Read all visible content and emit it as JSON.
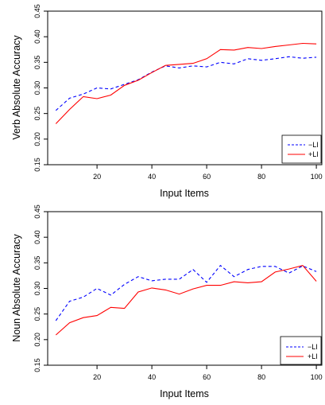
{
  "chart_data": [
    {
      "type": "line",
      "xlabel": "Input Items",
      "ylabel": "Verb Absolute Accuracy",
      "xlim": [
        2,
        102
      ],
      "ylim": [
        0.15,
        0.45
      ],
      "xticks": [
        20,
        40,
        60,
        80,
        100
      ],
      "yticks": [
        0.15,
        0.2,
        0.25,
        0.3,
        0.35,
        0.4,
        0.45
      ],
      "ytick_labels": [
        "0.15",
        "0.20",
        "0.25",
        "0.30",
        "0.35",
        "0.40",
        "0.45"
      ],
      "grid": false,
      "legend_position": "bottom-right",
      "x": [
        5,
        10,
        15,
        20,
        25,
        30,
        35,
        40,
        45,
        50,
        55,
        60,
        65,
        70,
        75,
        80,
        85,
        90,
        95,
        100
      ],
      "series": [
        {
          "name": "−LI",
          "color": "#0000ff",
          "dash": "dashed",
          "values": [
            0.256,
            0.28,
            0.288,
            0.3,
            0.298,
            0.307,
            0.316,
            0.331,
            0.343,
            0.339,
            0.343,
            0.341,
            0.35,
            0.347,
            0.357,
            0.354,
            0.357,
            0.361,
            0.358,
            0.36
          ]
        },
        {
          "name": "+LI",
          "color": "#ff0000",
          "dash": "solid",
          "values": [
            0.23,
            0.258,
            0.283,
            0.279,
            0.286,
            0.305,
            0.315,
            0.33,
            0.344,
            0.346,
            0.348,
            0.357,
            0.375,
            0.374,
            0.379,
            0.377,
            0.381,
            0.384,
            0.387,
            0.386
          ]
        }
      ]
    },
    {
      "type": "line",
      "xlabel": "Input Items",
      "ylabel": "Noun Absolute Accuracy",
      "xlim": [
        2,
        102
      ],
      "ylim": [
        0.15,
        0.45
      ],
      "xticks": [
        20,
        40,
        60,
        80,
        100
      ],
      "yticks": [
        0.15,
        0.2,
        0.25,
        0.3,
        0.35,
        0.4,
        0.45
      ],
      "ytick_labels": [
        "0.15",
        "0.20",
        "0.25",
        "0.30",
        "0.35",
        "0.40",
        "0.45"
      ],
      "grid": false,
      "legend_position": "bottom-right",
      "x": [
        5,
        10,
        15,
        20,
        25,
        30,
        35,
        40,
        45,
        50,
        55,
        60,
        65,
        70,
        75,
        80,
        85,
        90,
        95,
        100
      ],
      "series": [
        {
          "name": "−LI",
          "color": "#0000ff",
          "dash": "dashed",
          "values": [
            0.237,
            0.275,
            0.283,
            0.3,
            0.287,
            0.308,
            0.323,
            0.315,
            0.318,
            0.318,
            0.337,
            0.312,
            0.345,
            0.323,
            0.337,
            0.343,
            0.343,
            0.33,
            0.344,
            0.333
          ]
        },
        {
          "name": "+LI",
          "color": "#ff0000",
          "dash": "solid",
          "values": [
            0.209,
            0.233,
            0.243,
            0.247,
            0.263,
            0.261,
            0.293,
            0.301,
            0.297,
            0.289,
            0.299,
            0.306,
            0.306,
            0.313,
            0.311,
            0.313,
            0.332,
            0.338,
            0.345,
            0.314
          ]
        }
      ]
    }
  ]
}
